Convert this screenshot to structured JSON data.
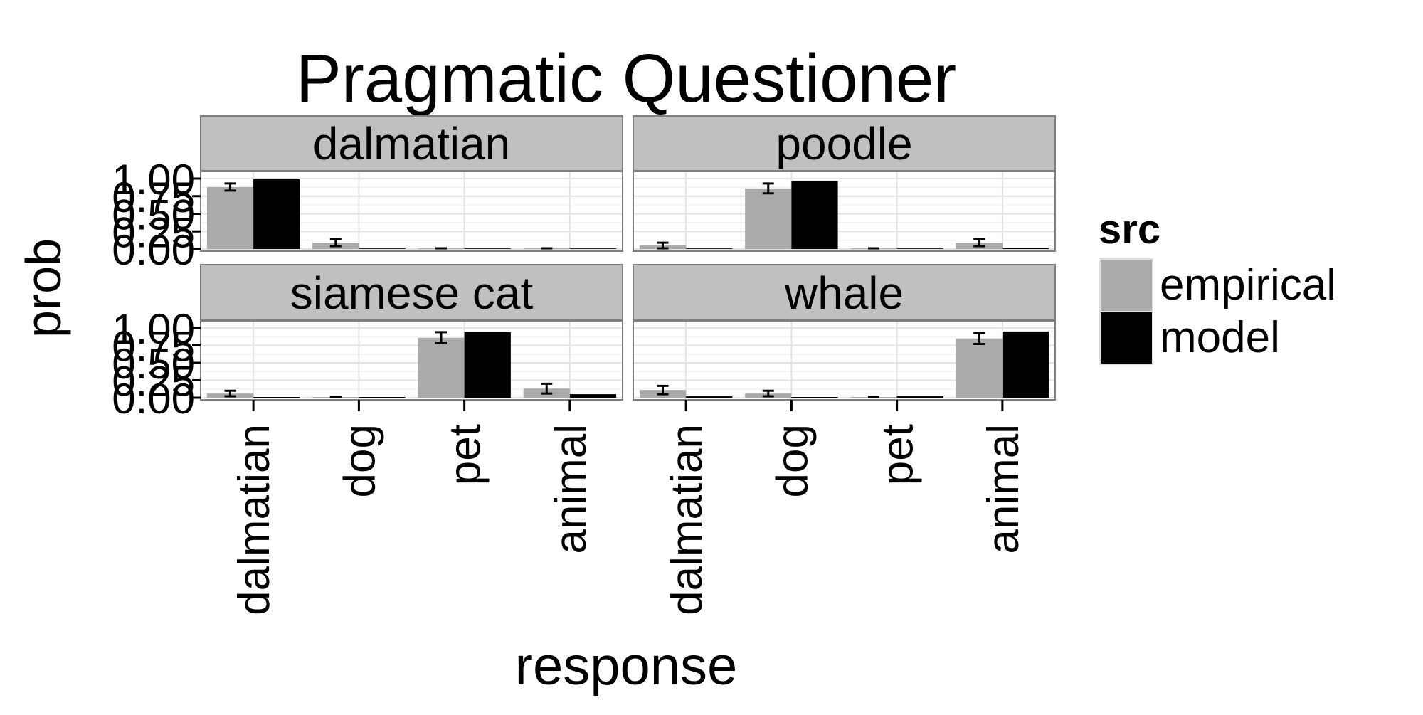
{
  "chart_data": {
    "type": "bar",
    "title": "Pragmatic Questioner",
    "xlabel": "response",
    "ylabel": "prob",
    "ylim": [
      0,
      1.0
    ],
    "y_ticks": [
      "0.00",
      "0.25",
      "0.50",
      "0.75",
      "1.00"
    ],
    "y_tick_values": [
      0,
      0.25,
      0.5,
      0.75,
      1.0
    ],
    "categories": [
      "dalmatian",
      "dog",
      "pet",
      "animal"
    ],
    "grid": true,
    "legend": {
      "title": "src",
      "placement": "right",
      "entries": [
        {
          "name": "empirical",
          "color": "#aaaaaa"
        },
        {
          "name": "model",
          "color": "#000000"
        }
      ]
    },
    "strip_color": "#c0c0c0",
    "facets": [
      {
        "label": "dalmatian",
        "series": [
          {
            "name": "empirical",
            "values": [
              0.88,
              0.09,
              0.01,
              0.01
            ],
            "error": [
              0.05,
              0.05,
              0.0,
              0.0
            ]
          },
          {
            "name": "model",
            "values": [
              0.99,
              0.0,
              0.0,
              0.0
            ]
          }
        ]
      },
      {
        "label": "poodle",
        "series": [
          {
            "name": "empirical",
            "values": [
              0.05,
              0.86,
              0.01,
              0.09
            ],
            "error": [
              0.04,
              0.07,
              0.0,
              0.05
            ]
          },
          {
            "name": "model",
            "values": [
              0.0,
              0.97,
              0.0,
              0.01
            ]
          }
        ]
      },
      {
        "label": "siamese cat",
        "series": [
          {
            "name": "empirical",
            "values": [
              0.06,
              0.01,
              0.86,
              0.13
            ],
            "error": [
              0.04,
              0.0,
              0.08,
              0.07
            ]
          },
          {
            "name": "model",
            "values": [
              0.01,
              0.01,
              0.94,
              0.05
            ]
          }
        ]
      },
      {
        "label": "whale",
        "series": [
          {
            "name": "empirical",
            "values": [
              0.11,
              0.06,
              0.01,
              0.85
            ],
            "error": [
              0.06,
              0.04,
              0.0,
              0.08
            ]
          },
          {
            "name": "model",
            "values": [
              0.02,
              0.01,
              0.02,
              0.95
            ]
          }
        ]
      }
    ]
  }
}
